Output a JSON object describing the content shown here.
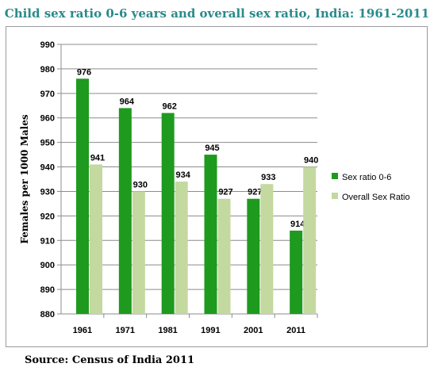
{
  "title": "Child sex ratio 0-6 years and overall sex ratio, India: 1961-2011",
  "source": "Source: Census of India 2011",
  "chart_data": {
    "type": "bar",
    "categories": [
      "1961",
      "1971",
      "1981",
      "1991",
      "2001",
      "2011"
    ],
    "series": [
      {
        "name": "Sex ratio 0-6",
        "values": [
          976,
          964,
          962,
          945,
          927,
          914
        ],
        "color": "#1e9a1e"
      },
      {
        "name": "Overall Sex Ratio",
        "values": [
          941,
          930,
          934,
          927,
          933,
          940
        ],
        "color": "#c3d9a0"
      }
    ],
    "ylabel": "Females per 1000 Males",
    "xlabel": "",
    "ylim": [
      880,
      990
    ],
    "yticks": [
      880,
      890,
      900,
      910,
      920,
      930,
      940,
      950,
      960,
      970,
      980,
      990
    ],
    "grid": true,
    "legend": "right"
  }
}
